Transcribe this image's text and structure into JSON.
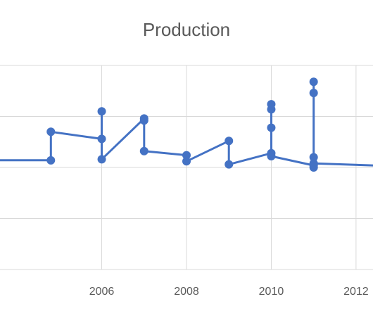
{
  "chart_data": {
    "type": "line",
    "title": "Production",
    "xlabel": "",
    "ylabel": "",
    "xlim": [
      2003.6,
      2012.4
    ],
    "ylim": [
      0,
      100
    ],
    "x_ticks": [
      2006,
      2008,
      2010,
      2012
    ],
    "grid": true,
    "legend": "none",
    "color": "#4472c4",
    "series": [
      {
        "points": [
          [
            2003.6,
            53.5
          ],
          [
            2004.8,
            53.5
          ],
          [
            2004.8,
            67.5
          ],
          [
            2006,
            64
          ],
          [
            2006,
            77.5
          ],
          [
            2006,
            54
          ],
          [
            2007,
            74
          ],
          [
            2007,
            73
          ],
          [
            2007,
            58
          ],
          [
            2008,
            56
          ],
          [
            2008,
            53
          ],
          [
            2009,
            63
          ],
          [
            2009,
            51.5
          ],
          [
            2010,
            57
          ],
          [
            2010,
            69.5
          ],
          [
            2010,
            78.5
          ],
          [
            2010,
            81
          ],
          [
            2010,
            55.5
          ],
          [
            2011,
            51
          ],
          [
            2011,
            50
          ],
          [
            2011,
            86.5
          ],
          [
            2011,
            92
          ],
          [
            2011,
            55
          ],
          [
            2011,
            52
          ],
          [
            2012.4,
            51
          ]
        ]
      }
    ]
  }
}
